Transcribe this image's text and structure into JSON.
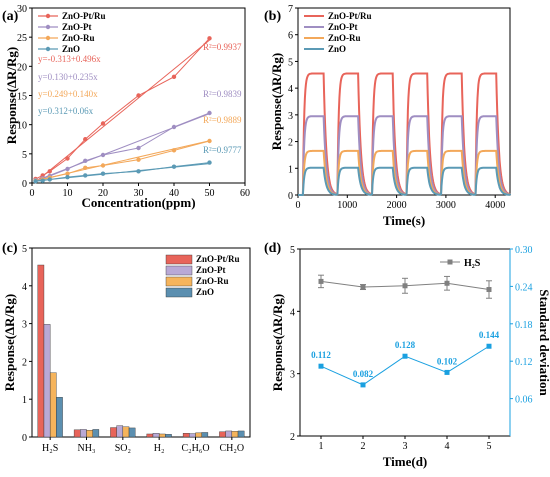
{
  "chart_data": [
    {
      "panel_label": "(a)",
      "type": "scatter",
      "xlabel": "Concentration(ppm)",
      "ylabel": "Response(∆R/Rg)",
      "xlim": [
        0,
        60
      ],
      "ylim": [
        0,
        30
      ],
      "xticks": [
        0,
        10,
        20,
        30,
        40,
        50,
        60
      ],
      "yticks": [
        0,
        5,
        10,
        15,
        20,
        25,
        30
      ],
      "legend": "top-left",
      "series": [
        {
          "name": "ZnO-Pt/Ru",
          "color": "#e8645a",
          "x": [
            1,
            3,
            5,
            10,
            15,
            20,
            30,
            40,
            50
          ],
          "y": [
            0.7,
            1.3,
            2.0,
            4.2,
            7.5,
            10.2,
            15.0,
            18.2,
            24.8
          ],
          "fit": [
            -0.313,
            0.496
          ],
          "equation": "y=-0.313+0.496x",
          "r2": "R²=0.9937"
        },
        {
          "name": "ZnO-Pt",
          "color": "#9f8ec2",
          "x": [
            1,
            3,
            5,
            10,
            15,
            20,
            30,
            40,
            50
          ],
          "y": [
            0.5,
            0.8,
            1.2,
            2.4,
            3.8,
            4.8,
            6.0,
            9.6,
            12.0
          ],
          "fit": [
            0.13,
            0.235
          ],
          "equation": "y=0.130+0.235x",
          "r2": "R²=0.9839"
        },
        {
          "name": "ZnO-Ru",
          "color": "#f3a85a",
          "x": [
            1,
            3,
            5,
            10,
            15,
            20,
            30,
            40,
            50
          ],
          "y": [
            0.4,
            0.6,
            0.9,
            1.6,
            2.6,
            3.0,
            4.0,
            5.6,
            7.2
          ],
          "fit": [
            0.249,
            0.14
          ],
          "equation": "y=0.249+0.140x",
          "r2": "R²=0.9889"
        },
        {
          "name": "ZnO",
          "color": "#5b9ab5",
          "x": [
            1,
            3,
            5,
            10,
            15,
            20,
            30,
            40,
            50
          ],
          "y": [
            0.3,
            0.4,
            0.6,
            1.0,
            1.3,
            1.6,
            2.0,
            2.8,
            3.5
          ],
          "fit": [
            0.312,
            0.06
          ],
          "equation": "y=0.312+0.06x",
          "r2": "R²=0.9777"
        }
      ]
    },
    {
      "panel_label": "(b)",
      "type": "line",
      "xlabel": "Time(s)",
      "ylabel": "Response(∆R/Rg)",
      "xlim": [
        0,
        4300
      ],
      "ylim": [
        0,
        7
      ],
      "xticks": [
        0,
        1000,
        2000,
        3000,
        4000
      ],
      "yticks": [
        0,
        1,
        2,
        3,
        4,
        5,
        6,
        7
      ],
      "legend": "top-left",
      "cycles": {
        "period": 700,
        "on_time": 420,
        "first_start": 100,
        "count": 6
      },
      "series": [
        {
          "name": "ZnO-Pt/Ru",
          "color": "#e8645a",
          "amplitude": 4.55
        },
        {
          "name": "ZnO-Pt",
          "color": "#9f8ec2",
          "amplitude": 2.95
        },
        {
          "name": "ZnO-Ru",
          "color": "#f3a85a",
          "amplitude": 1.65
        },
        {
          "name": "ZnO",
          "color": "#5b9ab5",
          "amplitude": 1.02
        }
      ]
    },
    {
      "panel_label": "(c)",
      "type": "bar",
      "ylabel": "Response(∆R/Rg)",
      "ylim": [
        0,
        5
      ],
      "yticks": [
        0,
        1,
        2,
        3,
        4,
        5
      ],
      "legend": "top-right",
      "categories": [
        "H₂S",
        "NH₃",
        "SO₂",
        "H₂",
        "C₂H₆O",
        "CH₂O"
      ],
      "series": [
        {
          "name": "ZnO-Pt/Ru",
          "color": "#e8645a",
          "values": [
            4.55,
            0.19,
            0.25,
            0.08,
            0.1,
            0.14
          ]
        },
        {
          "name": "ZnO-Pt",
          "color": "#b9a9d6",
          "values": [
            2.98,
            0.2,
            0.3,
            0.1,
            0.09,
            0.16
          ]
        },
        {
          "name": "ZnO-Ru",
          "color": "#f5b45c",
          "values": [
            1.7,
            0.18,
            0.27,
            0.08,
            0.11,
            0.15
          ]
        },
        {
          "name": "ZnO",
          "color": "#5b8fb0",
          "values": [
            1.05,
            0.2,
            0.24,
            0.07,
            0.12,
            0.16
          ]
        }
      ]
    },
    {
      "panel_label": "(d)",
      "type": "line",
      "xlabel": "Time(d)",
      "ylabel": "Response(∆R/Rg)",
      "y2label": "Standard deviation",
      "xlim": [
        0.5,
        5.5
      ],
      "ylim": [
        2,
        5
      ],
      "y2lim": [
        0.0,
        0.3
      ],
      "xticks": [
        1,
        2,
        3,
        4,
        5
      ],
      "yticks": [
        2,
        3,
        4,
        5
      ],
      "y2ticks": [
        "0.06",
        "0.12",
        "0.18",
        "0.24",
        "0.30"
      ],
      "legend": "top-right",
      "series": [
        {
          "name": "H₂S",
          "axis": "left",
          "color": "#808080",
          "x": [
            1,
            2,
            3,
            4,
            5
          ],
          "y": [
            4.48,
            4.39,
            4.41,
            4.45,
            4.35
          ],
          "err": [
            0.1,
            0.04,
            0.12,
            0.11,
            0.14
          ]
        },
        {
          "axis": "right",
          "color": "#1aa0e0",
          "x": [
            1,
            2,
            3,
            4,
            5
          ],
          "y": [
            0.112,
            0.082,
            0.128,
            0.102,
            0.144
          ],
          "labels": [
            "0.112",
            "0.082",
            "0.128",
            "0.102",
            "0.144"
          ]
        }
      ]
    }
  ]
}
